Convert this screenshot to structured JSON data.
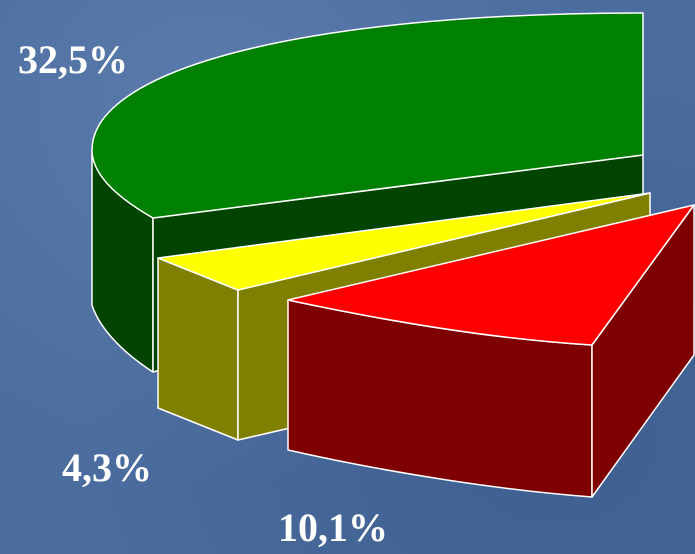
{
  "chart_data": {
    "type": "pie",
    "three_d": true,
    "exploded": true,
    "slices": [
      {
        "label": "32,5%",
        "value": 32.5,
        "color": "#008000",
        "side_color": "#004400"
      },
      {
        "label": "4,3%",
        "value": 4.3,
        "color": "#ffff00",
        "side_color": "#808000"
      },
      {
        "label": "10,1%",
        "value": 10.1,
        "color": "#ff0000",
        "side_color": "#7f0000"
      }
    ]
  }
}
